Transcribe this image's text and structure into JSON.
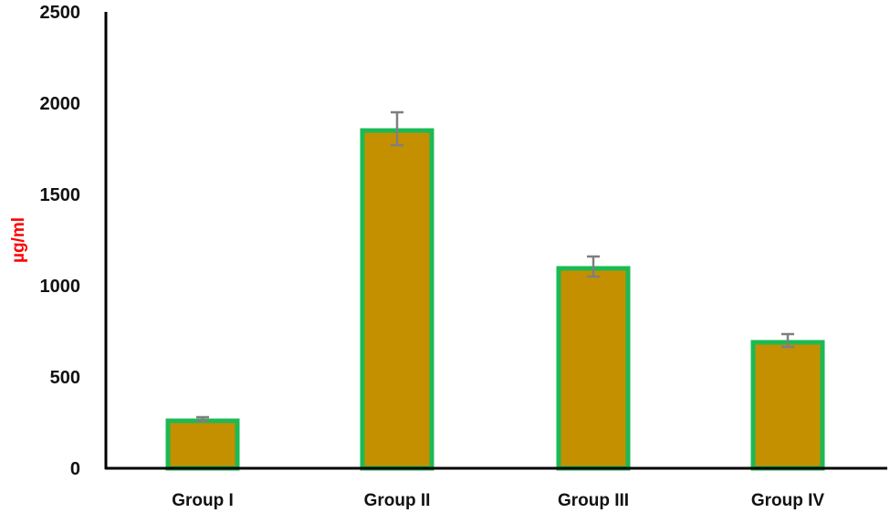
{
  "chart_data": {
    "type": "bar",
    "title": "",
    "xlabel": "",
    "ylabel": "µg/ml",
    "categories": [
      "Group I",
      "Group II",
      "Group III",
      "Group IV"
    ],
    "values": [
      270,
      1860,
      1105,
      700
    ],
    "error": [
      10,
      90,
      55,
      35
    ],
    "ylim": [
      0,
      2500
    ],
    "yticks": [
      0,
      500,
      1000,
      1500,
      2000,
      2500
    ],
    "grid": false,
    "legend": null
  },
  "colors": {
    "bar_fill": "#c49000",
    "bar_border": "#1db954",
    "error_bar": "#7f7f7f",
    "axis": "#000000",
    "ylabel": "#ff0000"
  }
}
